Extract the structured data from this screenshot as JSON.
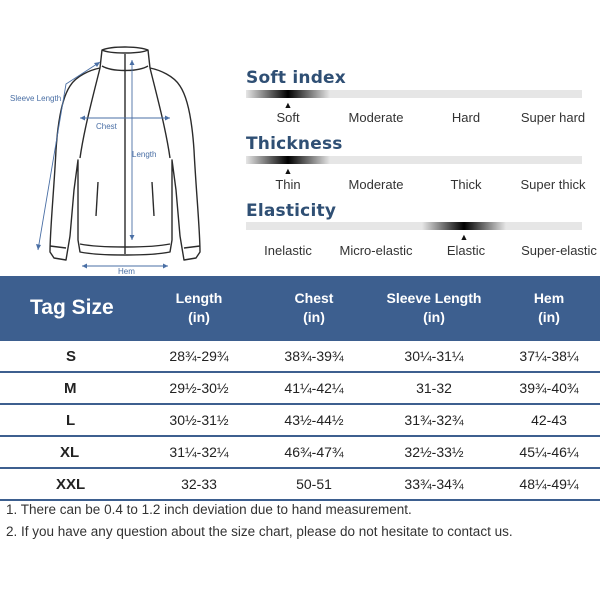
{
  "diagram": {
    "labels": {
      "sleeve_length": "Sleeve Length",
      "chest": "Chest",
      "length": "Length",
      "hem": "Hem"
    }
  },
  "properties": [
    {
      "title": "Soft index",
      "options": [
        "Soft",
        "Moderate",
        "Hard",
        "Super hard"
      ],
      "selected_index": 0,
      "accent": "#000000"
    },
    {
      "title": "Thickness",
      "options": [
        "Thin",
        "Moderate",
        "Thick",
        "Super thick"
      ],
      "selected_index": 0,
      "accent": "#000000"
    },
    {
      "title": "Elasticity",
      "options": [
        "Inelastic",
        "Micro-elastic",
        "Elastic",
        "Super-elastic"
      ],
      "selected_index": 2,
      "accent": "#000000"
    }
  ],
  "size_table": {
    "header": {
      "tag_size": "Tag Size",
      "columns": [
        {
          "label": "Length",
          "unit": "(in)"
        },
        {
          "label": "Chest",
          "unit": "(in)"
        },
        {
          "label": "Sleeve Length",
          "unit": "(in)"
        },
        {
          "label": "Hem",
          "unit": "(in)"
        }
      ]
    },
    "rows": [
      {
        "size": "S",
        "length": "28¾-29¾",
        "chest": "38¾-39¾",
        "sleeve": "30¼-31¼",
        "hem": "37¼-38¼"
      },
      {
        "size": "M",
        "length": "29½-30½",
        "chest": "41¼-42¼",
        "sleeve": "31-32",
        "hem": "39¾-40¾"
      },
      {
        "size": "L",
        "length": "30½-31½",
        "chest": "43½-44½",
        "sleeve": "31¾-32¾",
        "hem": "42-43"
      },
      {
        "size": "XL",
        "length": "31¼-32¼",
        "chest": "46¾-47¾",
        "sleeve": "32½-33½",
        "hem": "45¼-46¼"
      },
      {
        "size": "XXL",
        "length": "32-33",
        "chest": "50-51",
        "sleeve": "33¾-34¾",
        "hem": "48¼-49¼"
      }
    ]
  },
  "notes": [
    "1. There can be 0.4 to 1.2 inch deviation due to hand measurement.",
    "2. If you have any question about the size chart, please do not hesitate to contact us."
  ],
  "colors": {
    "header_bg": "#3d5f8f",
    "title_text": "#2f4f74",
    "measure_line": "#4a6fa5"
  }
}
